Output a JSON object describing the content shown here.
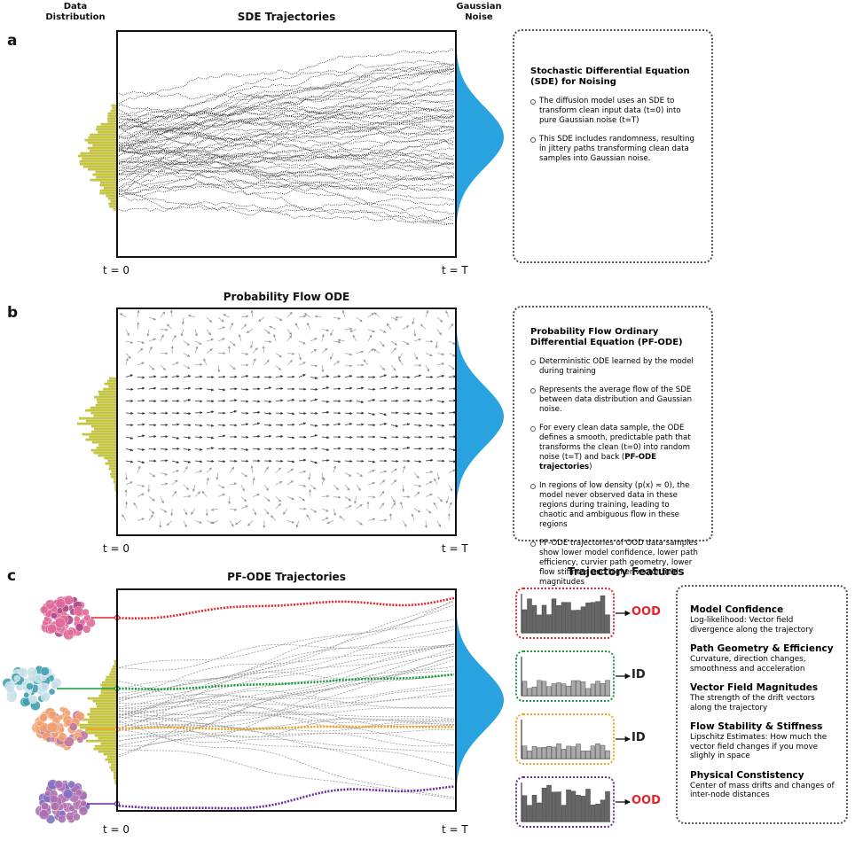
{
  "panels": [
    {
      "label": "a",
      "title": "SDE Trajectories",
      "left_label": "Data Distribution",
      "right_label": "Gaussian Noise",
      "t_start": "t = 0",
      "t_end": "t = T",
      "box": {
        "title": "Stochastic Differential Equation (SDE) for Noising",
        "items": [
          [
            {
              "text": "The diffusion model uses an SDE to transform clean input data (t=0) into pure Gaussian noise (t=T)"
            }
          ],
          [
            {
              "text": "This SDE includes randomness, resulting in jittery paths transforming clean data samples into Gaussian noise."
            }
          ]
        ]
      }
    },
    {
      "label": "b",
      "title": "Probability Flow ODE",
      "t_start": "t = 0",
      "t_end": "t = T",
      "box": {
        "title": "Probability Flow Ordinary Differential Equation (PF-ODE)",
        "items": [
          [
            {
              "text": "Deterministic ODE learned by the model during training"
            }
          ],
          [
            {
              "text": "Represents the average flow of the SDE between data distribution and Gaussian noise."
            }
          ],
          [
            {
              "text": "For every clean data sample, the ODE defines a smooth, predictable path that transforms the clean (t=0) into random noise (t=T) and back ("
            },
            {
              "text": "PF-ODE trajectories",
              "bold": true
            },
            {
              "text": ")"
            }
          ],
          [
            {
              "text": "In regions of low density (p(x) ≈ 0), the model never observed data in these regions during training, leading to chaotic and ambiguous flow in these regions"
            }
          ],
          [
            {
              "text": "PF-ODE trajectories of OOD data samples show lower model confidence, lower path efficiency, curvier path geometry, lower flow stiffness and higher vector field magnitudes"
            }
          ]
        ]
      }
    },
    {
      "label": "c",
      "title": "PF-ODE Trajectories",
      "t_start": "t = 0",
      "t_end": "t = T",
      "features_title": "Trajectory Features",
      "samples": [
        {
          "label": "OOD",
          "color": "#e0252b",
          "label_color": "#e0252b"
        },
        {
          "label": "ID",
          "color": "#1a9a3a",
          "label_color": "#222222"
        },
        {
          "label": "ID",
          "color": "#f0a020",
          "label_color": "#222222"
        },
        {
          "label": "OOD",
          "color": "#6a2a9a",
          "label_color": "#e0252b"
        }
      ],
      "features": [
        {
          "title": "Model Confidence",
          "text": "Log-likelihood: Vector field divergence along the trajectory"
        },
        {
          "title": "Path Geometry & Efficiency",
          "text": "Curvature, direction changes, smoothness and acceleration"
        },
        {
          "title": "Vector Field Magnitudes",
          "text": "The strength of the drift vectors along the trajectory"
        },
        {
          "title": "Flow Stability & Stiffness",
          "text": "Lipschitz Estimates: How much the vector field changes if you move slighly in space"
        },
        {
          "title": "Physical Constistency",
          "text": "Center of mass drifts and changes of inter-node distances"
        }
      ]
    }
  ]
}
